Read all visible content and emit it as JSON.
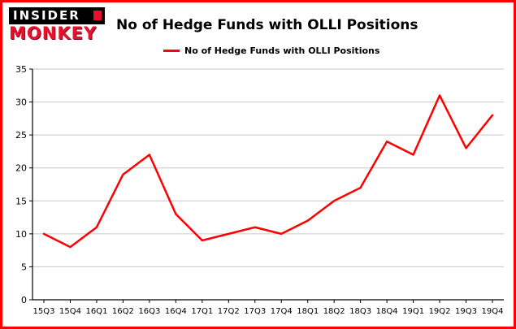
{
  "header": {
    "logo_line1": "INSIDER",
    "logo_line2": "MONKEY",
    "title": "No of Hedge Funds with OLLI Positions"
  },
  "legend": {
    "label": "No of Hedge Funds with OLLI Positions",
    "color": "#ff0000"
  },
  "chart_data": {
    "type": "line",
    "title": "No of Hedge Funds with OLLI Positions",
    "categories": [
      "15Q3",
      "15Q4",
      "16Q1",
      "16Q2",
      "16Q3",
      "16Q4",
      "17Q1",
      "17Q2",
      "17Q3",
      "17Q4",
      "18Q1",
      "18Q2",
      "18Q3",
      "18Q4",
      "19Q1",
      "19Q2",
      "19Q3",
      "19Q4"
    ],
    "series": [
      {
        "name": "No of Hedge Funds with OLLI Positions",
        "values": [
          10,
          8,
          11,
          19,
          22,
          13,
          9,
          10,
          11,
          10,
          12,
          15,
          17,
          24,
          22,
          31,
          23,
          28
        ]
      }
    ],
    "xlabel": "",
    "ylabel": "",
    "ylim": [
      0,
      35
    ],
    "yticks": [
      0,
      5,
      10,
      15,
      20,
      25,
      30,
      35
    ],
    "grid": true,
    "legend_position": "top-left",
    "line_color": "#ff0000",
    "grid_color": "#c6c6c6",
    "axis_color": "#000000",
    "frame_border_color": "#ff0000"
  }
}
